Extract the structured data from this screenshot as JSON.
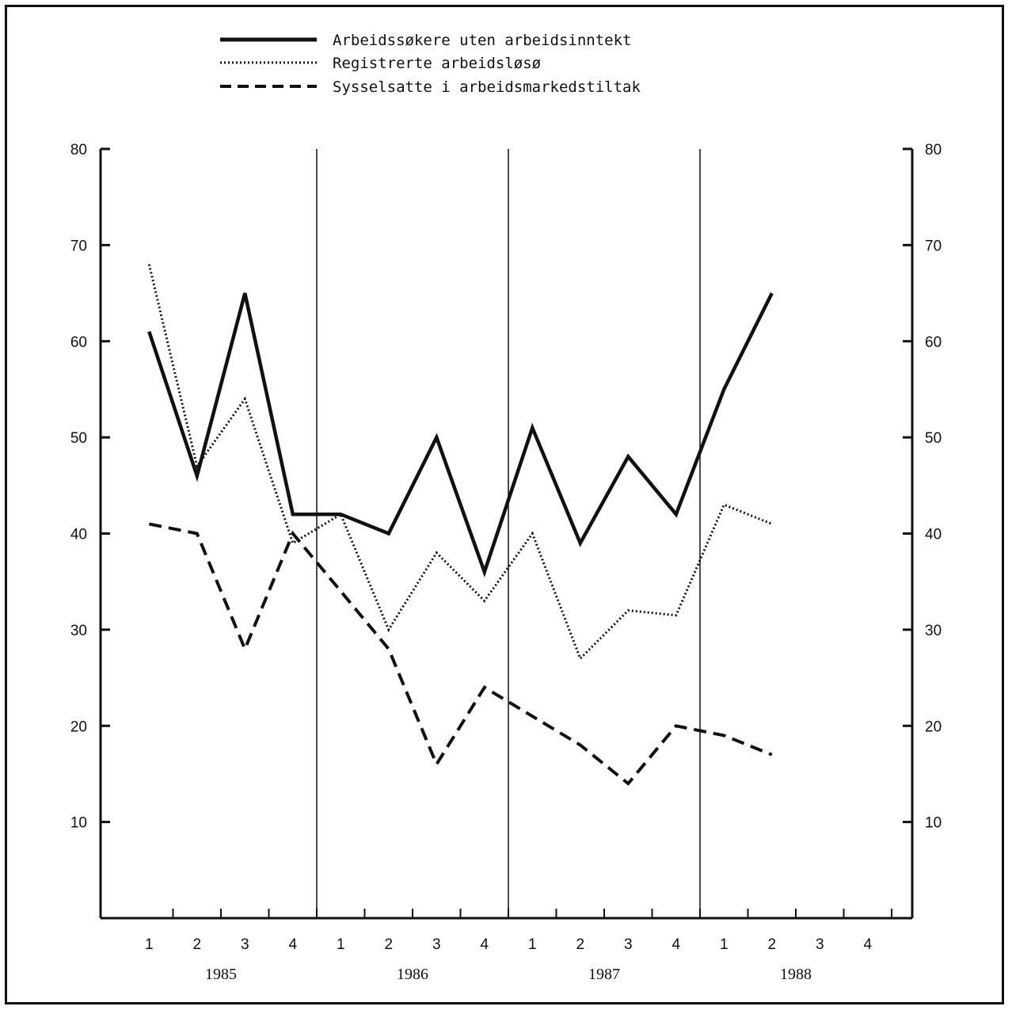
{
  "chart_data": {
    "type": "line",
    "title": "",
    "xlabel": "",
    "ylabel": "",
    "ylim": [
      0,
      80
    ],
    "y_ticks": [
      10,
      20,
      30,
      40,
      50,
      60,
      70,
      80
    ],
    "legend_position": "top-center",
    "grid": false,
    "quarter_labels": [
      "1",
      "2",
      "3",
      "4",
      "1",
      "2",
      "3",
      "4",
      "1",
      "2",
      "3",
      "4",
      "1",
      "2",
      "3",
      "4"
    ],
    "year_labels": [
      "1985",
      "1986",
      "1987",
      "1988"
    ],
    "categories": [
      "1985-1",
      "1985-2",
      "1985-3",
      "1985-4",
      "1986-1",
      "1986-2",
      "1986-3",
      "1986-4",
      "1987-1",
      "1987-2",
      "1987-3",
      "1987-4",
      "1988-1",
      "1988-2"
    ],
    "series": [
      {
        "name": "Arbeidssøkere uten arbeidsinntekt",
        "style": "solid",
        "values": [
          61,
          46,
          65,
          42,
          42,
          40,
          50,
          36,
          51,
          39,
          48,
          42,
          55,
          65
        ]
      },
      {
        "name": "Registrerte arbeidsløsø",
        "style": "dotted",
        "values": [
          68,
          47,
          54,
          39,
          42,
          30,
          38,
          33,
          40,
          27,
          32,
          31.5,
          43,
          41
        ]
      },
      {
        "name": "Sysselsatte i arbeidsmarkedstiltak",
        "style": "dashed",
        "values": [
          41,
          40,
          28,
          40,
          34,
          28,
          16,
          24,
          21,
          18,
          14,
          20,
          19,
          17
        ]
      }
    ],
    "colors": {
      "ink": "#111111",
      "background": "#ffffff"
    }
  }
}
